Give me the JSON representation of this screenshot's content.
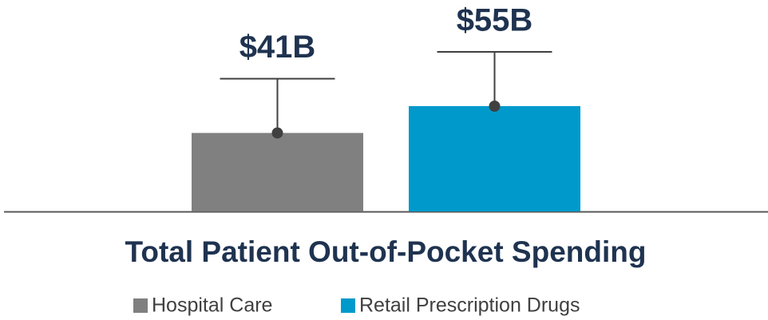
{
  "chart_data": {
    "type": "bar",
    "title": "Total Patient Out-of-Pocket Spending",
    "categories": [
      "Hospital Care",
      "Retail Prescription Drugs"
    ],
    "values": [
      41,
      55
    ],
    "value_labels": [
      "$41B",
      "$55B"
    ],
    "colors": [
      "#808080",
      "#0099cc"
    ]
  }
}
